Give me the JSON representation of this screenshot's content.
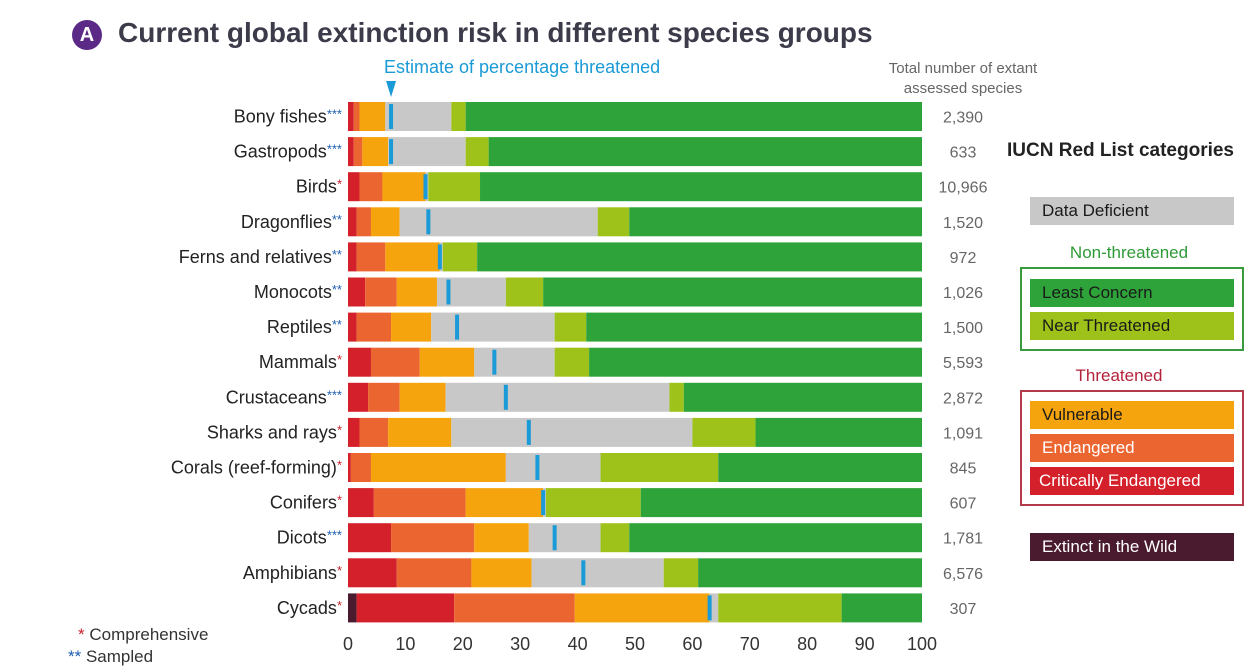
{
  "header": {
    "badge": "A",
    "title": "Current global extinction risk in different species groups",
    "estimate_label": "Estimate of percentage threatened",
    "total_header": "Total number of extant assessed species"
  },
  "legend": {
    "title": "IUCN Red List categories",
    "data_deficient": "Data Deficient",
    "non_threatened_label": "Non-threatened",
    "least_concern": "Least Concern",
    "near_threatened": "Near Threatened",
    "threatened_label": "Threatened",
    "vulnerable": "Vulnerable",
    "endangered": "Endangered",
    "critically_endangered": "Critically Endangered",
    "extinct_in_wild": "Extinct in the Wild"
  },
  "footnotes": {
    "comprehensive_mark": "*",
    "comprehensive": "Comprehensive",
    "sampled_mark": "**",
    "sampled": "Sampled"
  },
  "colors": {
    "extinct_in_wild": "#4a1a2e",
    "critically_endangered": "#d4202a",
    "endangered": "#eb6530",
    "vulnerable": "#f5a40d",
    "data_deficient": "#c8c8c8",
    "near_threatened": "#9ec219",
    "least_concern": "#2ea33a",
    "estimate_marker": "#1a9ad6",
    "comprehensive_star": "#c8202c",
    "sampled_star": "#1f5fb0"
  },
  "chart_data": {
    "type": "bar",
    "orientation": "horizontal",
    "stacked": true,
    "xlim": [
      0,
      100
    ],
    "xticks": [
      "0",
      "10",
      "20",
      "30",
      "40",
      "50",
      "60",
      "70",
      "80",
      "90",
      "100"
    ],
    "segment_order": [
      "Extinct in the Wild",
      "Critically Endangered",
      "Endangered",
      "Vulnerable",
      "Data Deficient",
      "Near Threatened",
      "Least Concern"
    ],
    "groups": [
      {
        "name": "Bony fishes",
        "mark": "***",
        "total": "2,390",
        "estimate": 7.5,
        "segments": [
          0,
          1.0,
          1.0,
          4.5,
          11.5,
          2.5,
          79.5
        ]
      },
      {
        "name": "Gastropods",
        "mark": "***",
        "total": "633",
        "estimate": 7.5,
        "segments": [
          0,
          1.0,
          1.5,
          4.5,
          13.5,
          4.0,
          75.5
        ]
      },
      {
        "name": "Birds",
        "mark": "*",
        "total": "10,966",
        "estimate": 13.5,
        "segments": [
          0,
          2.0,
          4.0,
          7.5,
          0.5,
          9.0,
          77.0
        ]
      },
      {
        "name": "Dragonflies",
        "mark": "**",
        "total": "1,520",
        "estimate": 14.0,
        "segments": [
          0,
          1.5,
          2.5,
          5.0,
          34.5,
          5.5,
          51.0
        ]
      },
      {
        "name": "Ferns and relatives",
        "mark": "**",
        "total": "972",
        "estimate": 16.0,
        "segments": [
          0,
          1.5,
          5.0,
          9.5,
          0.5,
          6.0,
          77.5
        ]
      },
      {
        "name": "Monocots",
        "mark": "**",
        "total": "1,026",
        "estimate": 17.5,
        "segments": [
          0,
          3.0,
          5.5,
          7.0,
          12.0,
          6.5,
          66.0
        ]
      },
      {
        "name": "Reptiles",
        "mark": "**",
        "total": "1,500",
        "estimate": 19.0,
        "segments": [
          0,
          1.5,
          6.0,
          7.0,
          21.5,
          5.5,
          58.5
        ]
      },
      {
        "name": "Mammals",
        "mark": "*",
        "total": "5,593",
        "estimate": 25.5,
        "segments": [
          0,
          4.0,
          8.5,
          9.5,
          14.0,
          6.0,
          58.0
        ]
      },
      {
        "name": "Crustaceans",
        "mark": "***",
        "total": "2,872",
        "estimate": 27.5,
        "segments": [
          0,
          3.5,
          5.5,
          8.0,
          39.0,
          2.5,
          41.5
        ]
      },
      {
        "name": "Sharks and rays",
        "mark": "*",
        "total": "1,091",
        "estimate": 31.5,
        "segments": [
          0,
          2.0,
          5.0,
          11.0,
          42.0,
          11.0,
          29.0
        ]
      },
      {
        "name": "Corals (reef-forming)",
        "mark": "*",
        "total": "845",
        "estimate": 33.0,
        "segments": [
          0,
          0.5,
          3.5,
          23.5,
          16.5,
          20.5,
          35.5
        ]
      },
      {
        "name": "Conifers",
        "mark": "*",
        "total": "607",
        "estimate": 34.0,
        "segments": [
          0,
          4.5,
          16.0,
          13.5,
          0.5,
          16.5,
          49.0
        ]
      },
      {
        "name": "Dicots",
        "mark": "***",
        "total": "1,781",
        "estimate": 36.0,
        "segments": [
          0,
          7.5,
          14.5,
          9.5,
          12.5,
          5.0,
          51.0
        ]
      },
      {
        "name": "Amphibians",
        "mark": "*",
        "total": "6,576",
        "estimate": 41.0,
        "segments": [
          0,
          8.5,
          13.0,
          10.5,
          23.0,
          6.0,
          39.0
        ]
      },
      {
        "name": "Cycads",
        "mark": "*",
        "total": "307",
        "estimate": 63.0,
        "segments": [
          1.5,
          17.0,
          21.0,
          23.5,
          1.5,
          21.5,
          14.0
        ]
      }
    ]
  }
}
